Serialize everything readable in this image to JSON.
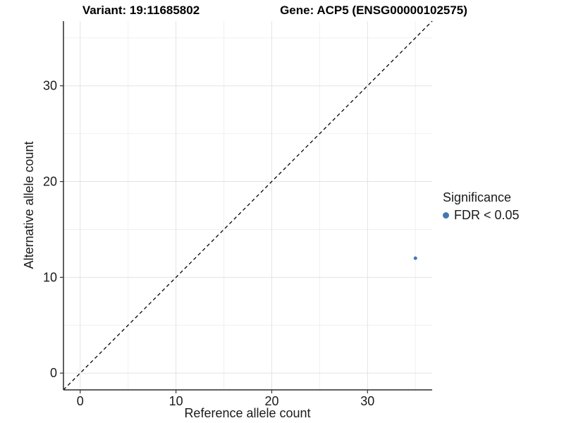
{
  "titles": {
    "variant": "Variant: 19:11685802",
    "gene": "Gene: ACP5 (ENSG00000102575)"
  },
  "legend": {
    "title": "Significance",
    "items": [
      {
        "label": "FDR < 0.05",
        "color": "#4477ae"
      }
    ]
  },
  "chart_data": {
    "type": "scatter",
    "title_left": "Variant: 19:11685802",
    "title_right": "Gene: ACP5 (ENSG00000102575)",
    "xlabel": "Reference allele count",
    "ylabel": "Alternative allele count",
    "xlim": [
      -1.75,
      36.75
    ],
    "ylim": [
      -1.75,
      36.75
    ],
    "x_major_ticks": [
      0,
      10,
      20,
      30
    ],
    "y_major_ticks": [
      0,
      10,
      20,
      30
    ],
    "x_minor_ticks": [
      5,
      15,
      25,
      35
    ],
    "y_minor_ticks": [
      5,
      15,
      25,
      35
    ],
    "grid": "on",
    "legend_position": "right",
    "identity_line": {
      "slope": 1,
      "intercept": 0,
      "style": "dashed",
      "color": "#000000"
    },
    "series": [
      {
        "name": "FDR < 0.05",
        "color": "#4477ae",
        "points": [
          {
            "x": 35,
            "y": 12
          }
        ]
      }
    ],
    "colors": {
      "grid_major": "#e3e3e3",
      "grid_minor": "#f0f0f0",
      "spine": "#2a2a2a",
      "tick": "#333333"
    }
  }
}
